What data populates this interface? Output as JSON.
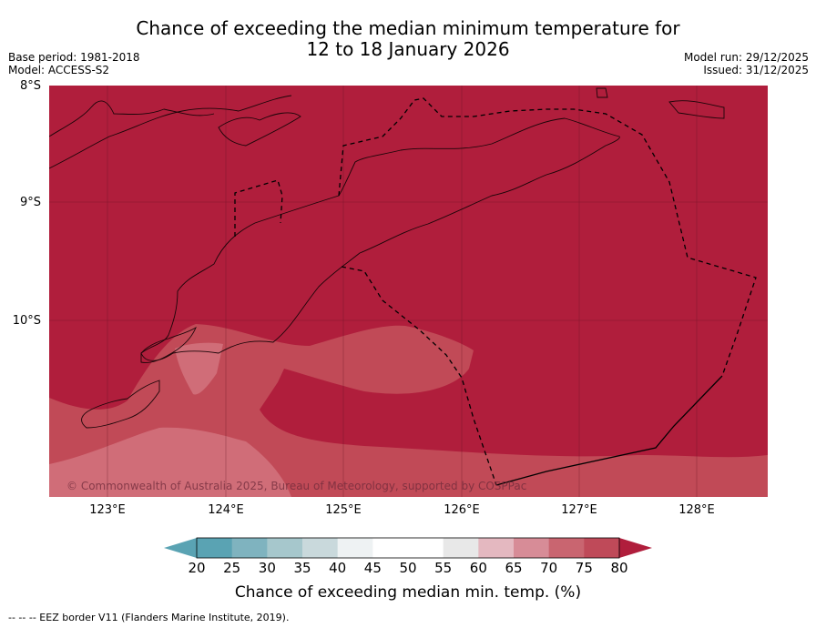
{
  "title_line1": "Chance of exceeding the median minimum temperature for",
  "title_line2": "12 to 18 January 2026",
  "base_period": "Base period: 1981-2018",
  "model": "Model: ACCESS-S2",
  "model_run": "Model run: 29/12/2025",
  "issued": "Issued: 31/12/2025",
  "map": {
    "lat_labels": [
      "8°S",
      "9°S",
      "10°S"
    ],
    "lon_labels": [
      "123°E",
      "124°E",
      "125°E",
      "126°E",
      "127°E",
      "128°E"
    ],
    "copyright": "© Commonwealth of Australia 2025, Bureau of Meteorology, supported by COSPPac"
  },
  "colorbar": {
    "ticks": [
      "20",
      "25",
      "30",
      "35",
      "40",
      "45",
      "50",
      "55",
      "60",
      "65",
      "70",
      "75",
      "80"
    ],
    "colors": [
      "#5aa3b3",
      "#7fb3bf",
      "#a6c7cc",
      "#c9d9dc",
      "#eef2f3",
      "#ffffff",
      "#ffffff",
      "#e8e8e8",
      "#e4b8c0",
      "#d78c97",
      "#c96570",
      "#bf4a59",
      "#b01e3c"
    ],
    "label": "Chance of exceeding median min. temp. (%)"
  },
  "footnote": "--  --  -- EEZ border V11 (Flanders Marine Institute, 2019).",
  "palette": {
    "high": "#b01e3c",
    "mid": "#c14a57",
    "low": "#d06d78",
    "lower": "#dc8993"
  }
}
